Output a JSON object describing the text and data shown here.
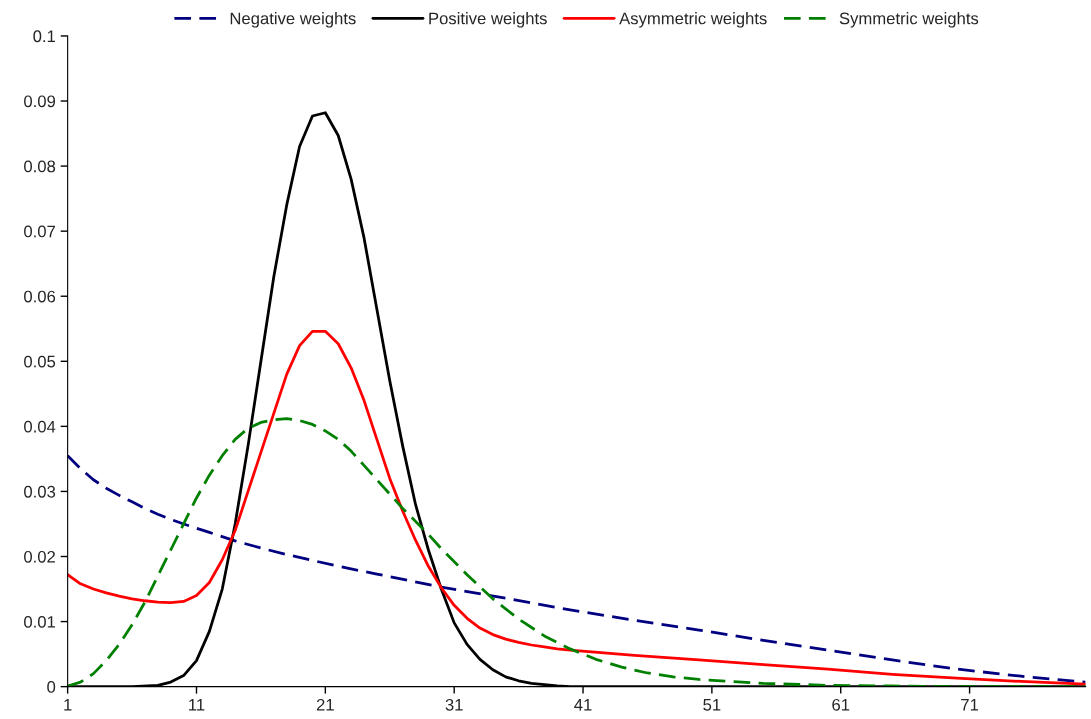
{
  "chart_data": {
    "type": "line",
    "legend": "top",
    "grid": false,
    "marker": "none",
    "xlim": [
      1,
      80
    ],
    "xticks": [
      1,
      11,
      21,
      31,
      41,
      51,
      61,
      71
    ],
    "ylim": [
      0,
      0.1
    ],
    "yticks": [
      0,
      0.01,
      0.02,
      0.03,
      0.04,
      0.05,
      0.06,
      0.07,
      0.08,
      0.09,
      0.1
    ],
    "series": [
      {
        "name": "Negative weights",
        "color": "#000080",
        "line_style": "dashed",
        "x": [
          1,
          2,
          3,
          4,
          5,
          6,
          7,
          8,
          9,
          10,
          12,
          14,
          16,
          18,
          20,
          22,
          25,
          30,
          35,
          40,
          45,
          50,
          55,
          60,
          65,
          70,
          75,
          80
        ],
        "values": [
          0.0355,
          0.0335,
          0.0318,
          0.0305,
          0.0294,
          0.0284,
          0.0274,
          0.0265,
          0.0257,
          0.025,
          0.0237,
          0.0224,
          0.0213,
          0.0203,
          0.0194,
          0.0185,
          0.0173,
          0.0153,
          0.0136,
          0.0118,
          0.0102,
          0.0087,
          0.0071,
          0.0056,
          0.0041,
          0.0027,
          0.0016,
          0.0007
        ]
      },
      {
        "name": "Positive weights",
        "color": "#000000",
        "line_style": "solid",
        "x": [
          1,
          6,
          8,
          9,
          10,
          11,
          12,
          13,
          14,
          15,
          16,
          17,
          18,
          19,
          20,
          21,
          22,
          23,
          24,
          25,
          26,
          27,
          28,
          29,
          30,
          31,
          32,
          33,
          34,
          35,
          36,
          37,
          38,
          39,
          40,
          50,
          60,
          70,
          80
        ],
        "values": [
          0,
          0,
          0.0002,
          0.0007,
          0.0017,
          0.004,
          0.0085,
          0.015,
          0.025,
          0.037,
          0.05,
          0.063,
          0.074,
          0.083,
          0.0877,
          0.0882,
          0.0847,
          0.078,
          0.069,
          0.058,
          0.047,
          0.037,
          0.028,
          0.021,
          0.015,
          0.0098,
          0.0065,
          0.0042,
          0.0026,
          0.0015,
          0.0009,
          0.0005,
          0.0003,
          0.0001,
          0,
          0,
          0,
          0,
          0
        ]
      },
      {
        "name": "Asymmetric weights",
        "color": "#ff0000",
        "line_style": "solid",
        "x": [
          1,
          2,
          3,
          4,
          5,
          6,
          7,
          8,
          9,
          10,
          11,
          12,
          13,
          14,
          15,
          16,
          17,
          18,
          19,
          20,
          21,
          22,
          23,
          24,
          25,
          26,
          27,
          28,
          29,
          30,
          31,
          32,
          33,
          34,
          35,
          36,
          37,
          38,
          39,
          40,
          45,
          50,
          55,
          60,
          65,
          70,
          75,
          80
        ],
        "values": [
          0.0172,
          0.0158,
          0.015,
          0.0144,
          0.0139,
          0.0135,
          0.0132,
          0.013,
          0.0129,
          0.0131,
          0.014,
          0.016,
          0.0195,
          0.024,
          0.03,
          0.036,
          0.042,
          0.048,
          0.0524,
          0.0546,
          0.0546,
          0.0527,
          0.049,
          0.044,
          0.038,
          0.032,
          0.027,
          0.0225,
          0.0185,
          0.0152,
          0.0125,
          0.0105,
          0.009,
          0.008,
          0.0073,
          0.0068,
          0.0064,
          0.0061,
          0.0058,
          0.0056,
          0.0048,
          0.0041,
          0.0034,
          0.0027,
          0.0019,
          0.0013,
          0.0008,
          0.0004
        ]
      },
      {
        "name": "Symmetric weights",
        "color": "#008000",
        "line_style": "dashed",
        "x": [
          1,
          2,
          3,
          4,
          5,
          6,
          7,
          8,
          9,
          10,
          11,
          12,
          13,
          14,
          15,
          16,
          17,
          18,
          19,
          20,
          21,
          22,
          23,
          24,
          25,
          26,
          27,
          28,
          29,
          30,
          32,
          34,
          36,
          38,
          40,
          42,
          44,
          46,
          48,
          50,
          55,
          60,
          65,
          70,
          80
        ],
        "values": [
          0.0001,
          0.0007,
          0.002,
          0.004,
          0.0065,
          0.0095,
          0.013,
          0.017,
          0.021,
          0.025,
          0.029,
          0.0325,
          0.0355,
          0.038,
          0.0397,
          0.0406,
          0.041,
          0.0412,
          0.0409,
          0.0403,
          0.0393,
          0.038,
          0.0362,
          0.034,
          0.0318,
          0.0296,
          0.0274,
          0.0254,
          0.0234,
          0.0212,
          0.0172,
          0.0135,
          0.0104,
          0.0078,
          0.0058,
          0.0042,
          0.003,
          0.0021,
          0.0015,
          0.0011,
          0.0005,
          0.0002,
          0.0001,
          0,
          0
        ]
      }
    ]
  }
}
